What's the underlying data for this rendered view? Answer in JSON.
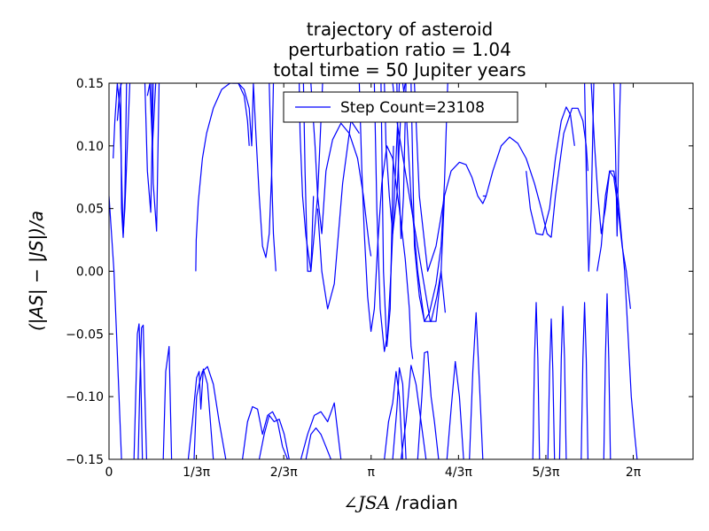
{
  "chart_data": {
    "type": "line",
    "title_lines": [
      "trajectory of asteroid",
      "perturbation ratio = 1.04",
      "total time = 50 Jupiter years"
    ],
    "xlabel_math": "∠JSA",
    "xlabel_text": " /radian",
    "ylabel": "(|AS| − |JS|)/a",
    "xlim": [
      0,
      7.0
    ],
    "ylim": [
      -0.15,
      0.15
    ],
    "x_ticks": [
      {
        "value": 0,
        "label": "0"
      },
      {
        "value": 1.0472,
        "label": "1/3π"
      },
      {
        "value": 2.0944,
        "label": "2/3π"
      },
      {
        "value": 3.1416,
        "label": "π"
      },
      {
        "value": 4.1888,
        "label": "4/3π"
      },
      {
        "value": 5.236,
        "label": "5/3π"
      },
      {
        "value": 6.2832,
        "label": "2π"
      }
    ],
    "y_ticks": [
      {
        "value": 0.15,
        "label": "0.15"
      },
      {
        "value": 0.1,
        "label": "0.10"
      },
      {
        "value": 0.05,
        "label": "0.05"
      },
      {
        "value": 0.0,
        "label": "0.00"
      },
      {
        "value": -0.05,
        "label": "−0.05"
      },
      {
        "value": -0.1,
        "label": "−0.10"
      },
      {
        "value": -0.15,
        "label": "−0.15"
      }
    ],
    "legend": {
      "placement": "upper-center",
      "entries": [
        "Step Count=23108"
      ]
    },
    "grid": false,
    "line_color": "#0000ff",
    "series": [
      {
        "x": [
          0.0,
          0.03,
          0.06,
          0.09,
          0.12,
          0.15
        ],
        "y": [
          0.06,
          0.03,
          0.0,
          -0.05,
          -0.1,
          -0.15
        ]
      },
      {
        "x": [
          0.05,
          0.07,
          0.1,
          0.13,
          0.15,
          0.17,
          0.19,
          0.22,
          0.25
        ],
        "y": [
          0.09,
          0.12,
          0.15,
          0.13,
          0.08,
          0.03,
          0.05,
          0.1,
          0.15
        ]
      },
      {
        "x": [
          0.1,
          0.13,
          0.15,
          0.16
        ],
        "y": [
          0.12,
          0.145,
          0.15,
          0.15
        ]
      },
      {
        "x": [
          0.14,
          0.15,
          0.17,
          0.19,
          0.21
        ],
        "y": [
          0.15,
          0.05,
          0.027,
          0.06,
          0.15
        ]
      },
      {
        "x": [
          0.43,
          0.46,
          0.5,
          0.53
        ],
        "y": [
          0.15,
          0.08,
          0.047,
          0.15
        ]
      },
      {
        "x": [
          0.51,
          0.53,
          0.57,
          0.6
        ],
        "y": [
          0.15,
          0.07,
          0.032,
          0.15
        ]
      },
      {
        "x": [
          0.46,
          0.49,
          0.52,
          0.56
        ],
        "y": [
          0.14,
          0.15,
          0.1,
          0.15
        ]
      },
      {
        "x": [
          1.04,
          1.045,
          1.07,
          1.12,
          1.17,
          1.25,
          1.35,
          1.45,
          1.55,
          1.62,
          1.68,
          1.71,
          1.73,
          1.76,
          1.8,
          1.84,
          1.88,
          1.92,
          1.95,
          1.97
        ],
        "y": [
          0.0,
          0.025,
          0.055,
          0.09,
          0.11,
          0.13,
          0.145,
          0.15,
          0.15,
          0.145,
          0.13,
          0.1,
          0.15,
          0.11,
          0.06,
          0.02,
          0.011,
          0.03,
          0.08,
          0.15
        ]
      },
      {
        "x": [
          1.48,
          1.55,
          1.62,
          1.66,
          1.68
        ],
        "y": [
          0.15,
          0.15,
          0.14,
          0.12,
          0.1
        ]
      },
      {
        "x": [
          1.92,
          1.94,
          1.97,
          2.0
        ],
        "y": [
          0.15,
          0.1,
          0.03,
          0.0
        ]
      },
      {
        "x": [
          2.28,
          2.29,
          2.32,
          2.36,
          2.42,
          2.5,
          2.56
        ],
        "y": [
          0.15,
          0.11,
          0.06,
          0.028,
          0.0,
          0.06,
          0.15
        ]
      },
      {
        "x": [
          2.33,
          2.35,
          2.38,
          2.42,
          2.45
        ],
        "y": [
          0.15,
          0.08,
          0.0,
          0.0,
          0.06
        ]
      },
      {
        "x": [
          2.5,
          2.55,
          2.62,
          2.7,
          2.8,
          2.9,
          3.0
        ],
        "y": [
          0.05,
          0.0,
          -0.03,
          -0.01,
          0.07,
          0.12,
          0.11
        ]
      },
      {
        "x": [
          2.42,
          2.47,
          2.5,
          2.55,
          2.6,
          2.68,
          2.78,
          2.88,
          2.98,
          3.05,
          3.12,
          3.14
        ],
        "y": [
          0.15,
          0.1,
          0.06,
          0.03,
          0.08,
          0.105,
          0.118,
          0.11,
          0.09,
          0.06,
          0.02,
          0.012
        ]
      },
      {
        "x": [
          3.0,
          3.03,
          3.06,
          3.1,
          3.14,
          3.18,
          3.22,
          3.27,
          3.33,
          3.4,
          3.48,
          3.55,
          3.6,
          3.62,
          3.64
        ],
        "y": [
          0.15,
          0.08,
          0.03,
          -0.02,
          -0.048,
          -0.03,
          0.02,
          0.07,
          0.1,
          0.09,
          0.05,
          0.01,
          -0.03,
          -0.06,
          -0.07
        ]
      },
      {
        "x": [
          3.18,
          3.21,
          3.25,
          3.3,
          3.34,
          3.38,
          3.42,
          3.48
        ],
        "y": [
          0.15,
          0.05,
          -0.03,
          -0.064,
          -0.05,
          0.0,
          0.06,
          0.15
        ]
      },
      {
        "x": [
          3.3,
          3.32,
          3.36,
          3.4,
          3.45,
          3.5,
          3.55
        ],
        "y": [
          0.15,
          0.1,
          0.06,
          0.03,
          0.06,
          0.13,
          0.15
        ]
      },
      {
        "x": [
          3.26,
          3.29,
          3.33,
          3.37,
          3.41
        ],
        "y": [
          0.15,
          0.0,
          -0.06,
          -0.03,
          0.1
        ]
      },
      {
        "x": [
          3.45,
          3.47,
          3.5,
          3.53,
          3.56
        ],
        "y": [
          0.15,
          0.08,
          0.026,
          0.06,
          0.15
        ]
      },
      {
        "x": [
          3.4,
          3.45,
          3.55,
          3.65,
          3.75,
          3.85,
          3.92,
          3.98,
          4.02
        ],
        "y": [
          0.15,
          0.12,
          0.08,
          0.04,
          0.0,
          -0.04,
          -0.04,
          0.0,
          0.06
        ]
      },
      {
        "x": [
          3.52,
          3.56,
          3.62,
          3.7,
          3.78,
          3.86,
          3.93,
          3.98,
          4.03
        ],
        "y": [
          0.15,
          0.13,
          0.06,
          0.0,
          -0.04,
          -0.04,
          -0.02,
          0.0,
          -0.033
        ]
      },
      {
        "x": [
          3.66,
          3.72,
          3.82,
          3.92,
          4.02,
          4.1,
          4.2,
          4.28,
          4.35,
          4.42,
          4.48,
          4.52
        ],
        "y": [
          0.15,
          0.06,
          0.0,
          0.02,
          0.06,
          0.08,
          0.087,
          0.085,
          0.075,
          0.06,
          0.054,
          0.06
        ]
      },
      {
        "x": [
          3.62,
          3.66,
          3.72,
          3.78,
          3.84,
          3.92,
          3.98,
          4.02,
          4.06
        ],
        "y": [
          0.15,
          0.02,
          -0.02,
          -0.04,
          -0.033,
          -0.01,
          0.02,
          0.07,
          0.15
        ]
      },
      {
        "x": [
          4.48,
          4.52,
          4.6,
          4.7,
          4.8,
          4.9,
          5.0,
          5.1,
          5.18,
          5.25,
          5.3
        ],
        "y": [
          0.06,
          0.06,
          0.08,
          0.1,
          0.107,
          0.102,
          0.09,
          0.07,
          0.05,
          0.03,
          0.027
        ]
      },
      {
        "x": [
          5.0,
          5.05,
          5.12,
          5.2,
          5.28,
          5.35,
          5.42,
          5.48,
          5.53,
          5.58
        ],
        "y": [
          0.08,
          0.05,
          0.03,
          0.029,
          0.05,
          0.09,
          0.12,
          0.131,
          0.125,
          0.1
        ]
      },
      {
        "x": [
          5.3,
          5.35,
          5.45,
          5.55,
          5.62,
          5.68,
          5.72,
          5.74
        ],
        "y": [
          0.027,
          0.06,
          0.11,
          0.13,
          0.13,
          0.12,
          0.1,
          0.08
        ]
      },
      {
        "x": [
          5.7,
          5.72,
          5.75,
          5.78,
          5.81
        ],
        "y": [
          0.15,
          0.08,
          0.0,
          0.05,
          0.15
        ]
      },
      {
        "x": [
          5.78,
          5.82,
          5.86,
          5.9,
          5.95,
          6.0,
          6.05,
          6.1,
          6.15,
          6.2,
          6.25
        ],
        "y": [
          0.15,
          0.1,
          0.06,
          0.03,
          0.05,
          0.08,
          0.075,
          0.05,
          0.02,
          0.0,
          -0.03
        ]
      },
      {
        "x": [
          5.85,
          5.9,
          5.95,
          6.0,
          6.05,
          6.1,
          6.14,
          6.18,
          6.22,
          6.26,
          6.3,
          6.33
        ],
        "y": [
          0.0,
          0.02,
          0.06,
          0.08,
          0.08,
          0.06,
          0.03,
          0.0,
          -0.05,
          -0.1,
          -0.13,
          -0.15
        ]
      },
      {
        "x": [
          6.05,
          6.07,
          6.09,
          6.11,
          6.13
        ],
        "y": [
          0.15,
          0.1,
          0.028,
          0.1,
          0.15
        ]
      },
      {
        "x": [
          0.3,
          0.32,
          0.34,
          0.36,
          0.38,
          0.4
        ],
        "y": [
          -0.15,
          -0.1,
          -0.05,
          -0.042,
          -0.08,
          -0.15
        ]
      },
      {
        "x": [
          0.35,
          0.37,
          0.39,
          0.41,
          0.43,
          0.45
        ],
        "y": [
          -0.15,
          -0.09,
          -0.045,
          -0.043,
          -0.1,
          -0.15
        ]
      },
      {
        "x": [
          0.65,
          0.68,
          0.72,
          0.75
        ],
        "y": [
          -0.15,
          -0.08,
          -0.06,
          -0.15
        ]
      },
      {
        "x": [
          0.95,
          1.0,
          1.05,
          1.08,
          1.1,
          1.13,
          1.18,
          1.25
        ],
        "y": [
          -0.15,
          -0.12,
          -0.085,
          -0.08,
          -0.11,
          -0.078,
          -0.09,
          -0.15
        ]
      },
      {
        "x": [
          1.02,
          1.05,
          1.08,
          1.12,
          1.18,
          1.25,
          1.32,
          1.4
        ],
        "y": [
          -0.15,
          -0.1,
          -0.09,
          -0.08,
          -0.076,
          -0.09,
          -0.12,
          -0.15
        ]
      },
      {
        "x": [
          1.6,
          1.66,
          1.72,
          1.78,
          1.84,
          1.9,
          1.96,
          2.02,
          2.08,
          2.14
        ],
        "y": [
          -0.15,
          -0.12,
          -0.108,
          -0.11,
          -0.13,
          -0.115,
          -0.112,
          -0.12,
          -0.14,
          -0.15
        ]
      },
      {
        "x": [
          1.8,
          1.86,
          1.92,
          1.98,
          2.04,
          2.1,
          2.16
        ],
        "y": [
          -0.15,
          -0.13,
          -0.115,
          -0.12,
          -0.118,
          -0.13,
          -0.15
        ]
      },
      {
        "x": [
          2.3,
          2.38,
          2.46,
          2.54,
          2.62,
          2.7,
          2.78
        ],
        "y": [
          -0.15,
          -0.13,
          -0.115,
          -0.112,
          -0.12,
          -0.105,
          -0.15
        ]
      },
      {
        "x": [
          2.36,
          2.42,
          2.48,
          2.54,
          2.6,
          2.66
        ],
        "y": [
          -0.15,
          -0.13,
          -0.125,
          -0.13,
          -0.14,
          -0.15
        ]
      },
      {
        "x": [
          3.3,
          3.35,
          3.4,
          3.44,
          3.48,
          3.52
        ],
        "y": [
          -0.15,
          -0.12,
          -0.105,
          -0.08,
          -0.1,
          -0.15
        ]
      },
      {
        "x": [
          3.4,
          3.45,
          3.48,
          3.52,
          3.56
        ],
        "y": [
          -0.15,
          -0.11,
          -0.077,
          -0.09,
          -0.15
        ]
      },
      {
        "x": [
          3.5,
          3.56,
          3.62,
          3.68,
          3.74,
          3.8
        ],
        "y": [
          -0.15,
          -0.12,
          -0.075,
          -0.09,
          -0.12,
          -0.15
        ]
      },
      {
        "x": [
          3.7,
          3.75,
          3.78,
          3.82,
          3.86,
          3.9,
          3.95
        ],
        "y": [
          -0.15,
          -0.1,
          -0.065,
          -0.064,
          -0.1,
          -0.12,
          -0.15
        ]
      },
      {
        "x": [
          4.05,
          4.1,
          4.15,
          4.2,
          4.25
        ],
        "y": [
          -0.15,
          -0.11,
          -0.072,
          -0.1,
          -0.15
        ]
      },
      {
        "x": [
          4.32,
          4.36,
          4.4,
          4.44,
          4.48
        ],
        "y": [
          -0.15,
          -0.08,
          -0.033,
          -0.09,
          -0.15
        ]
      },
      {
        "x": [
          5.08,
          5.1,
          5.12,
          5.14,
          5.16
        ],
        "y": [
          -0.15,
          -0.07,
          -0.025,
          -0.07,
          -0.15
        ]
      },
      {
        "x": [
          5.26,
          5.28,
          5.3,
          5.32,
          5.34
        ],
        "y": [
          -0.15,
          -0.08,
          -0.038,
          -0.08,
          -0.15
        ]
      },
      {
        "x": [
          5.4,
          5.42,
          5.44,
          5.46,
          5.48
        ],
        "y": [
          -0.15,
          -0.07,
          -0.028,
          -0.07,
          -0.15
        ]
      },
      {
        "x": [
          5.66,
          5.68,
          5.7,
          5.72,
          5.74
        ],
        "y": [
          -0.15,
          -0.07,
          -0.025,
          -0.07,
          -0.15
        ]
      },
      {
        "x": [
          5.93,
          5.95,
          5.97,
          5.99,
          6.01
        ],
        "y": [
          -0.15,
          -0.07,
          -0.018,
          -0.07,
          -0.15
        ]
      }
    ]
  }
}
